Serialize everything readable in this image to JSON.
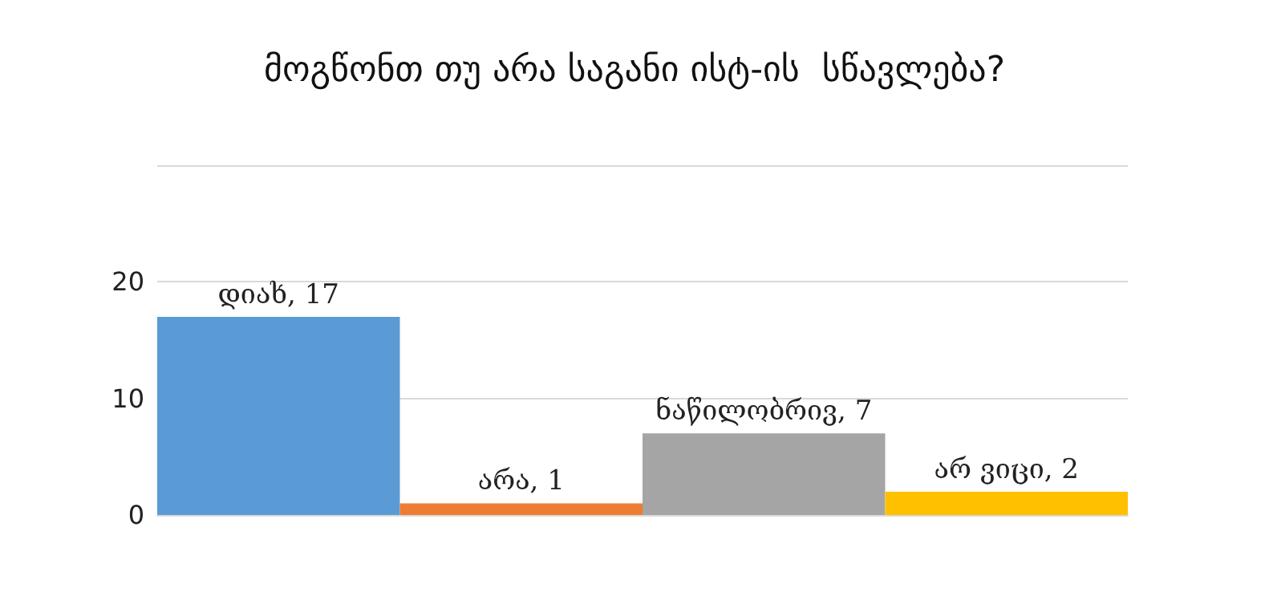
{
  "chart_data": {
    "type": "bar",
    "title": "მოგწონთ თუ არა საგანი ისტ-ის  სწავლება?",
    "categories": [
      null,
      null,
      null,
      null
    ],
    "values": [
      17,
      1,
      7,
      2
    ],
    "colors": [
      "#5b9bd5",
      "#ed7d31",
      "#a5a5a5",
      "#ffc000"
    ],
    "value_labels": [
      "დიახ, 17",
      "არა, 1",
      "ნაწილობრივ, 7",
      "არ ვიცი, 2"
    ],
    "ylim": [
      0,
      30
    ],
    "yticks": [
      0,
      10,
      20,
      {
        "value": 30,
        "label": null
      }
    ],
    "grid": "y",
    "tick_labels": "y"
  }
}
